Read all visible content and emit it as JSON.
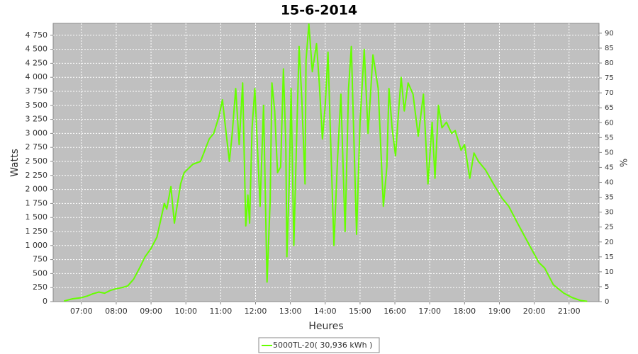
{
  "chart_data": {
    "type": "line",
    "title": "15-6-2014",
    "xlabel": "Heures",
    "ylabel": "Watts",
    "y2label": "%",
    "series": [
      {
        "name": "5000TL-20( 30,936 kWh )",
        "color": "#66ff00",
        "x": [
          6.5,
          6.75,
          7,
          7.17,
          7.33,
          7.5,
          7.67,
          7.83,
          8,
          8.17,
          8.33,
          8.5,
          8.67,
          8.83,
          9,
          9.17,
          9.38,
          9.45,
          9.57,
          9.67,
          9.85,
          9.95,
          10.2,
          10.42,
          10.67,
          10.8,
          10.95,
          11.05,
          11.13,
          11.25,
          11.33,
          11.43,
          11.53,
          11.63,
          11.72,
          11.78,
          11.83,
          11.9,
          11.98,
          12.13,
          12.23,
          12.33,
          12.42,
          12.47,
          12.55,
          12.63,
          12.72,
          12.8,
          12.87,
          12.9,
          12.97,
          13.02,
          13.1,
          13.17,
          13.25,
          13.33,
          13.42,
          13.45,
          13.53,
          13.63,
          13.75,
          13.83,
          13.92,
          14,
          14.08,
          14.15,
          14.25,
          14.35,
          14.45,
          14.57,
          14.67,
          14.75,
          14.9,
          15,
          15.12,
          15.23,
          15.37,
          15.52,
          15.67,
          15.77,
          15.83,
          15.92,
          16.02,
          16.1,
          16.18,
          16.27,
          16.38,
          16.52,
          16.67,
          16.82,
          16.95,
          17.07,
          17.15,
          17.25,
          17.35,
          17.48,
          17.63,
          17.73,
          17.9,
          18,
          18.15,
          18.27,
          18.4,
          18.6,
          18.83,
          19.07,
          19.27,
          19.52,
          19.78,
          20.13,
          20.3,
          20.55,
          20.85,
          21.1,
          21.33,
          21.52
        ],
        "values": [
          10,
          50,
          70,
          100,
          140,
          170,
          150,
          200,
          230,
          250,
          280,
          400,
          600,
          800,
          950,
          1150,
          1750,
          1650,
          2050,
          1400,
          2100,
          2300,
          2450,
          2500,
          2900,
          3000,
          3300,
          3600,
          3150,
          2500,
          3000,
          3800,
          2800,
          3900,
          1350,
          1900,
          1400,
          3100,
          3800,
          1700,
          3500,
          350,
          1800,
          3900,
          3400,
          2300,
          2400,
          4150,
          2800,
          800,
          2200,
          3800,
          1000,
          2700,
          4550,
          3600,
          2100,
          4300,
          4950,
          4100,
          4600,
          3900,
          2900,
          3500,
          4450,
          3000,
          1000,
          2500,
          3700,
          1250,
          3800,
          4550,
          1200,
          3200,
          4500,
          3000,
          4400,
          3800,
          1700,
          2400,
          3800,
          3100,
          2600,
          3350,
          4000,
          3400,
          3900,
          3700,
          2950,
          3700,
          2100,
          3200,
          2200,
          3500,
          3100,
          3200,
          3000,
          3050,
          2700,
          2800,
          2200,
          2650,
          2500,
          2350,
          2100,
          1850,
          1700,
          1400,
          1100,
          700,
          600,
          300,
          150,
          70,
          20,
          5
        ]
      }
    ],
    "xlim": [
      6.19,
      21.86
    ],
    "xticks": [
      {
        "value": 7,
        "label": "07:00"
      },
      {
        "value": 8,
        "label": "08:00"
      },
      {
        "value": 9,
        "label": "09:00"
      },
      {
        "value": 10,
        "label": "10:00"
      },
      {
        "value": 11,
        "label": "11:00"
      },
      {
        "value": 12,
        "label": "12:00"
      },
      {
        "value": 13,
        "label": "13:00"
      },
      {
        "value": 14,
        "label": "14:00"
      },
      {
        "value": 15,
        "label": "15:00"
      },
      {
        "value": 16,
        "label": "16:00"
      },
      {
        "value": 17,
        "label": "17:00"
      },
      {
        "value": 18,
        "label": "18:00"
      },
      {
        "value": 19,
        "label": "19:00"
      },
      {
        "value": 20,
        "label": "20:00"
      },
      {
        "value": 21,
        "label": "21:00"
      }
    ],
    "ylim": [
      0,
      4962
    ],
    "yticks": [
      0,
      250,
      500,
      750,
      {
        "value": 1000,
        "label": "1 000"
      },
      {
        "value": 1250,
        "label": "1 250"
      },
      {
        "value": 1500,
        "label": "1 500"
      },
      {
        "value": 1750,
        "label": "1 750"
      },
      {
        "value": 2000,
        "label": "2 000"
      },
      {
        "value": 2250,
        "label": "2 250"
      },
      {
        "value": 2500,
        "label": "2 500"
      },
      {
        "value": 2750,
        "label": "2 750"
      },
      {
        "value": 3000,
        "label": "3 000"
      },
      {
        "value": 3250,
        "label": "3 250"
      },
      {
        "value": 3500,
        "label": "3 500"
      },
      {
        "value": 3750,
        "label": "3 750"
      },
      {
        "value": 4000,
        "label": "4 000"
      },
      {
        "value": 4250,
        "label": "4 250"
      },
      {
        "value": 4500,
        "label": "4 500"
      },
      {
        "value": 4750,
        "label": "4 750"
      }
    ],
    "y2lim": [
      0,
      93.3
    ],
    "y2ticks": [
      0,
      5,
      10,
      15,
      20,
      25,
      30,
      35,
      40,
      45,
      50,
      55,
      60,
      65,
      70,
      75,
      80,
      85,
      90
    ],
    "grid": true
  }
}
